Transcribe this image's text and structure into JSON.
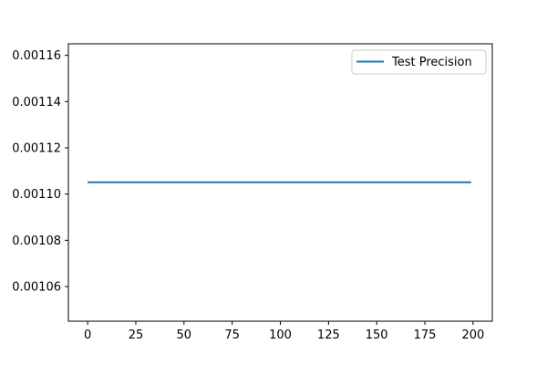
{
  "chart_data": {
    "type": "line",
    "xlim": [
      -10,
      210
    ],
    "ylim": [
      0.001045,
      0.001165
    ],
    "x_ticks": [
      0,
      25,
      50,
      75,
      100,
      125,
      150,
      175,
      200
    ],
    "x_tick_labels": [
      "0",
      "25",
      "50",
      "75",
      "100",
      "125",
      "150",
      "175",
      "200"
    ],
    "y_ticks": [
      0.00106,
      0.00108,
      0.0011,
      0.00112,
      0.00114,
      0.00116
    ],
    "y_tick_labels": [
      "0.00106",
      "0.00108",
      "0.00110",
      "0.00112",
      "0.00114",
      "0.00116"
    ],
    "grid": false,
    "legend_position": "top-right",
    "series": [
      {
        "name": "Test Precision",
        "color": "#1f77b4",
        "x": [
          0,
          199
        ],
        "y": [
          0.0011051,
          0.0011051
        ]
      }
    ]
  }
}
